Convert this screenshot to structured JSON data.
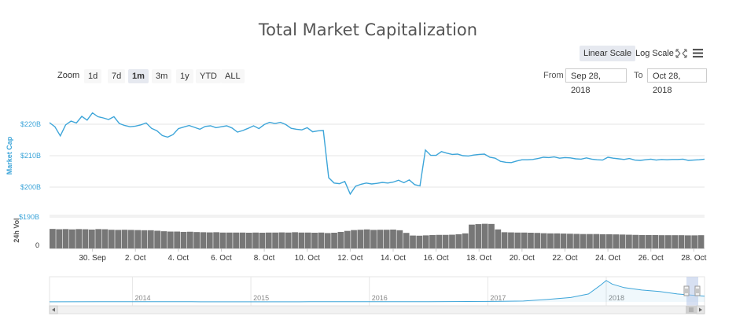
{
  "header": {
    "title": "Total Market Capitalization",
    "linear_scale": "Linear Scale",
    "log_scale": "Log Scale"
  },
  "toolbar": {
    "zoom_label": "Zoom",
    "zoom_options": [
      "1d",
      "7d",
      "1m",
      "3m",
      "1y",
      "YTD",
      "ALL"
    ],
    "zoom_selected": "1m",
    "from_label": "From",
    "from_value": "Sep 28, 2018",
    "to_label": "To",
    "to_value": "Oct 28, 2018"
  },
  "colors": {
    "line": "#3da5d9",
    "volume": "#777777",
    "grid": "#e6e6e6",
    "navigator_mask": "#b7c7e8"
  },
  "icons": [
    "fullscreen-icon",
    "menu-icon"
  ],
  "chart_data": {
    "type": "line",
    "x_unit": "date",
    "main": {
      "ylabel": "Market Cap",
      "y_ticks": [
        {
          "value": 220,
          "label": "$220B"
        },
        {
          "value": 210,
          "label": "$210B"
        },
        {
          "value": 200,
          "label": "$200B"
        }
      ],
      "ylim": [
        194,
        227
      ],
      "x_ticks": [
        "30. Sep",
        "2. Oct",
        "4. Oct",
        "6. Oct",
        "8. Oct",
        "10. Oct",
        "12. Oct",
        "14. Oct",
        "16. Oct",
        "18. Oct",
        "20. Oct",
        "22. Oct",
        "24. Oct",
        "26. Oct",
        "28. Oct"
      ],
      "series": [
        {
          "x": [
            "2018-09-28T00:00",
            "2018-09-28T06:00",
            "2018-09-28T12:00",
            "2018-09-28T18:00",
            "2018-09-29T00:00",
            "2018-09-29T06:00",
            "2018-09-29T12:00",
            "2018-09-29T18:00",
            "2018-09-30T00:00",
            "2018-09-30T06:00",
            "2018-09-30T12:00",
            "2018-09-30T18:00",
            "2018-10-01T00:00",
            "2018-10-01T06:00",
            "2018-10-01T12:00",
            "2018-10-01T18:00",
            "2018-10-02T00:00",
            "2018-10-02T06:00",
            "2018-10-02T12:00",
            "2018-10-02T18:00",
            "2018-10-03T00:00",
            "2018-10-03T06:00",
            "2018-10-03T12:00",
            "2018-10-03T18:00",
            "2018-10-04T00:00",
            "2018-10-04T06:00",
            "2018-10-04T12:00",
            "2018-10-04T18:00",
            "2018-10-05T00:00",
            "2018-10-05T06:00",
            "2018-10-05T12:00",
            "2018-10-05T18:00",
            "2018-10-06T00:00",
            "2018-10-06T06:00",
            "2018-10-06T12:00",
            "2018-10-06T18:00",
            "2018-10-07T00:00",
            "2018-10-07T06:00",
            "2018-10-07T12:00",
            "2018-10-07T18:00",
            "2018-10-08T00:00",
            "2018-10-08T06:00",
            "2018-10-08T12:00",
            "2018-10-08T18:00",
            "2018-10-09T00:00",
            "2018-10-09T06:00",
            "2018-10-09T12:00",
            "2018-10-09T18:00",
            "2018-10-10T00:00",
            "2018-10-10T06:00",
            "2018-10-10T12:00",
            "2018-10-10T18:00",
            "2018-10-11T00:00",
            "2018-10-11T06:00",
            "2018-10-11T12:00",
            "2018-10-11T18:00",
            "2018-10-12T00:00",
            "2018-10-12T06:00",
            "2018-10-12T12:00",
            "2018-10-12T18:00",
            "2018-10-13T00:00",
            "2018-10-13T06:00",
            "2018-10-13T12:00",
            "2018-10-13T18:00",
            "2018-10-14T00:00",
            "2018-10-14T06:00",
            "2018-10-14T12:00",
            "2018-10-14T18:00",
            "2018-10-15T00:00",
            "2018-10-15T06:00",
            "2018-10-15T12:00",
            "2018-10-15T18:00",
            "2018-10-16T00:00",
            "2018-10-16T06:00",
            "2018-10-16T12:00",
            "2018-10-16T18:00",
            "2018-10-17T00:00",
            "2018-10-17T06:00",
            "2018-10-17T12:00",
            "2018-10-17T18:00",
            "2018-10-18T00:00",
            "2018-10-18T06:00",
            "2018-10-18T12:00",
            "2018-10-18T18:00",
            "2018-10-19T00:00",
            "2018-10-19T06:00",
            "2018-10-19T12:00",
            "2018-10-19T18:00",
            "2018-10-20T00:00",
            "2018-10-20T06:00",
            "2018-10-20T12:00",
            "2018-10-20T18:00",
            "2018-10-21T00:00",
            "2018-10-21T06:00",
            "2018-10-21T12:00",
            "2018-10-21T18:00",
            "2018-10-22T00:00",
            "2018-10-22T06:00",
            "2018-10-22T12:00",
            "2018-10-22T18:00",
            "2018-10-23T00:00",
            "2018-10-23T06:00",
            "2018-10-23T12:00",
            "2018-10-23T18:00",
            "2018-10-24T00:00",
            "2018-10-24T06:00",
            "2018-10-24T12:00",
            "2018-10-24T18:00",
            "2018-10-25T00:00",
            "2018-10-25T06:00",
            "2018-10-25T12:00",
            "2018-10-25T18:00",
            "2018-10-26T00:00",
            "2018-10-26T06:00",
            "2018-10-26T12:00",
            "2018-10-26T18:00",
            "2018-10-27T00:00",
            "2018-10-27T06:00",
            "2018-10-27T12:00",
            "2018-10-27T18:00",
            "2018-10-28T00:00",
            "2018-10-28T06:00",
            "2018-10-28T12:00"
          ],
          "values": [
            220.5,
            219.2,
            216.3,
            219.8,
            221.0,
            220.4,
            222.5,
            221.3,
            223.6,
            222.4,
            222.0,
            221.5,
            222.4,
            220.2,
            219.6,
            219.2,
            219.4,
            219.8,
            220.4,
            218.7,
            217.9,
            216.4,
            215.9,
            216.7,
            218.6,
            219.1,
            219.6,
            219.0,
            218.4,
            219.3,
            219.5,
            218.9,
            219.2,
            219.5,
            218.8,
            217.5,
            218.0,
            218.7,
            219.5,
            218.6,
            219.9,
            220.6,
            220.2,
            220.6,
            219.9,
            218.7,
            218.4,
            218.2,
            218.9,
            217.6,
            217.9,
            218.0,
            203.0,
            201.3,
            201.1,
            201.8,
            197.8,
            200.3,
            200.9,
            201.3,
            201.0,
            201.2,
            201.5,
            201.3,
            201.6,
            202.2,
            201.4,
            202.3,
            200.8,
            200.4,
            211.8,
            210.1,
            210.1,
            211.3,
            210.8,
            210.4,
            210.5,
            210.0,
            209.9,
            210.2,
            210.4,
            210.5,
            209.5,
            209.2,
            208.2,
            207.9,
            207.8,
            208.3,
            208.7,
            208.7,
            208.8,
            209.1,
            209.5,
            209.4,
            209.6,
            209.2,
            209.4,
            209.3,
            209.0,
            208.9,
            209.3,
            208.9,
            208.7,
            208.6,
            209.5,
            209.2,
            209.0,
            208.8,
            209.1,
            208.6,
            208.5,
            208.7,
            208.9,
            208.6,
            208.8,
            208.7,
            208.8,
            208.8,
            208.9,
            208.5,
            208.6,
            208.7,
            208.9
          ]
        }
      ]
    },
    "volume": {
      "ylabel": "24h Vol",
      "y_ticks": [
        {
          "value": 0,
          "label": "0"
        },
        {
          "value": 190,
          "label": "$190B"
        }
      ],
      "ylim": [
        0,
        190
      ],
      "values": [
        118,
        116,
        117,
        115,
        117,
        116,
        114,
        117,
        116,
        113,
        112,
        113,
        112,
        111,
        110,
        110,
        107,
        104,
        102,
        102,
        100,
        101,
        99,
        98,
        97,
        98,
        96,
        96,
        96,
        96,
        95,
        96,
        95,
        96,
        96,
        97,
        96,
        98,
        96,
        96,
        95,
        96,
        93,
        95,
        100,
        106,
        111,
        113,
        115,
        112,
        113,
        113,
        114,
        110,
        94,
        78,
        77,
        79,
        81,
        82,
        82,
        83,
        86,
        91,
        144,
        147,
        149,
        148,
        115,
        98,
        97,
        96,
        96,
        95,
        94,
        92,
        91,
        91,
        90,
        89,
        88,
        87,
        87,
        87,
        86,
        86,
        85,
        84,
        83,
        82,
        81,
        81,
        81,
        80,
        80,
        80,
        80,
        79,
        79,
        80
      ]
    },
    "navigator": {
      "x_ticks": [
        "2014",
        "2015",
        "2016",
        "2017",
        "2018"
      ],
      "x": [
        2013.3,
        2014.0,
        2014.5,
        2015.0,
        2015.5,
        2016.0,
        2016.5,
        2017.0,
        2017.3,
        2017.5,
        2017.7,
        2017.85,
        2017.95,
        2018.0,
        2018.05,
        2018.15,
        2018.3,
        2018.45,
        2018.6,
        2018.75,
        2018.83
      ],
      "values": [
        2,
        8,
        6,
        4,
        5,
        7,
        9,
        17,
        30,
        90,
        160,
        290,
        600,
        780,
        650,
        520,
        430,
        380,
        290,
        235,
        210
      ],
      "selected_range": [
        "Sep 28, 2018",
        "Oct 28, 2018"
      ]
    }
  }
}
